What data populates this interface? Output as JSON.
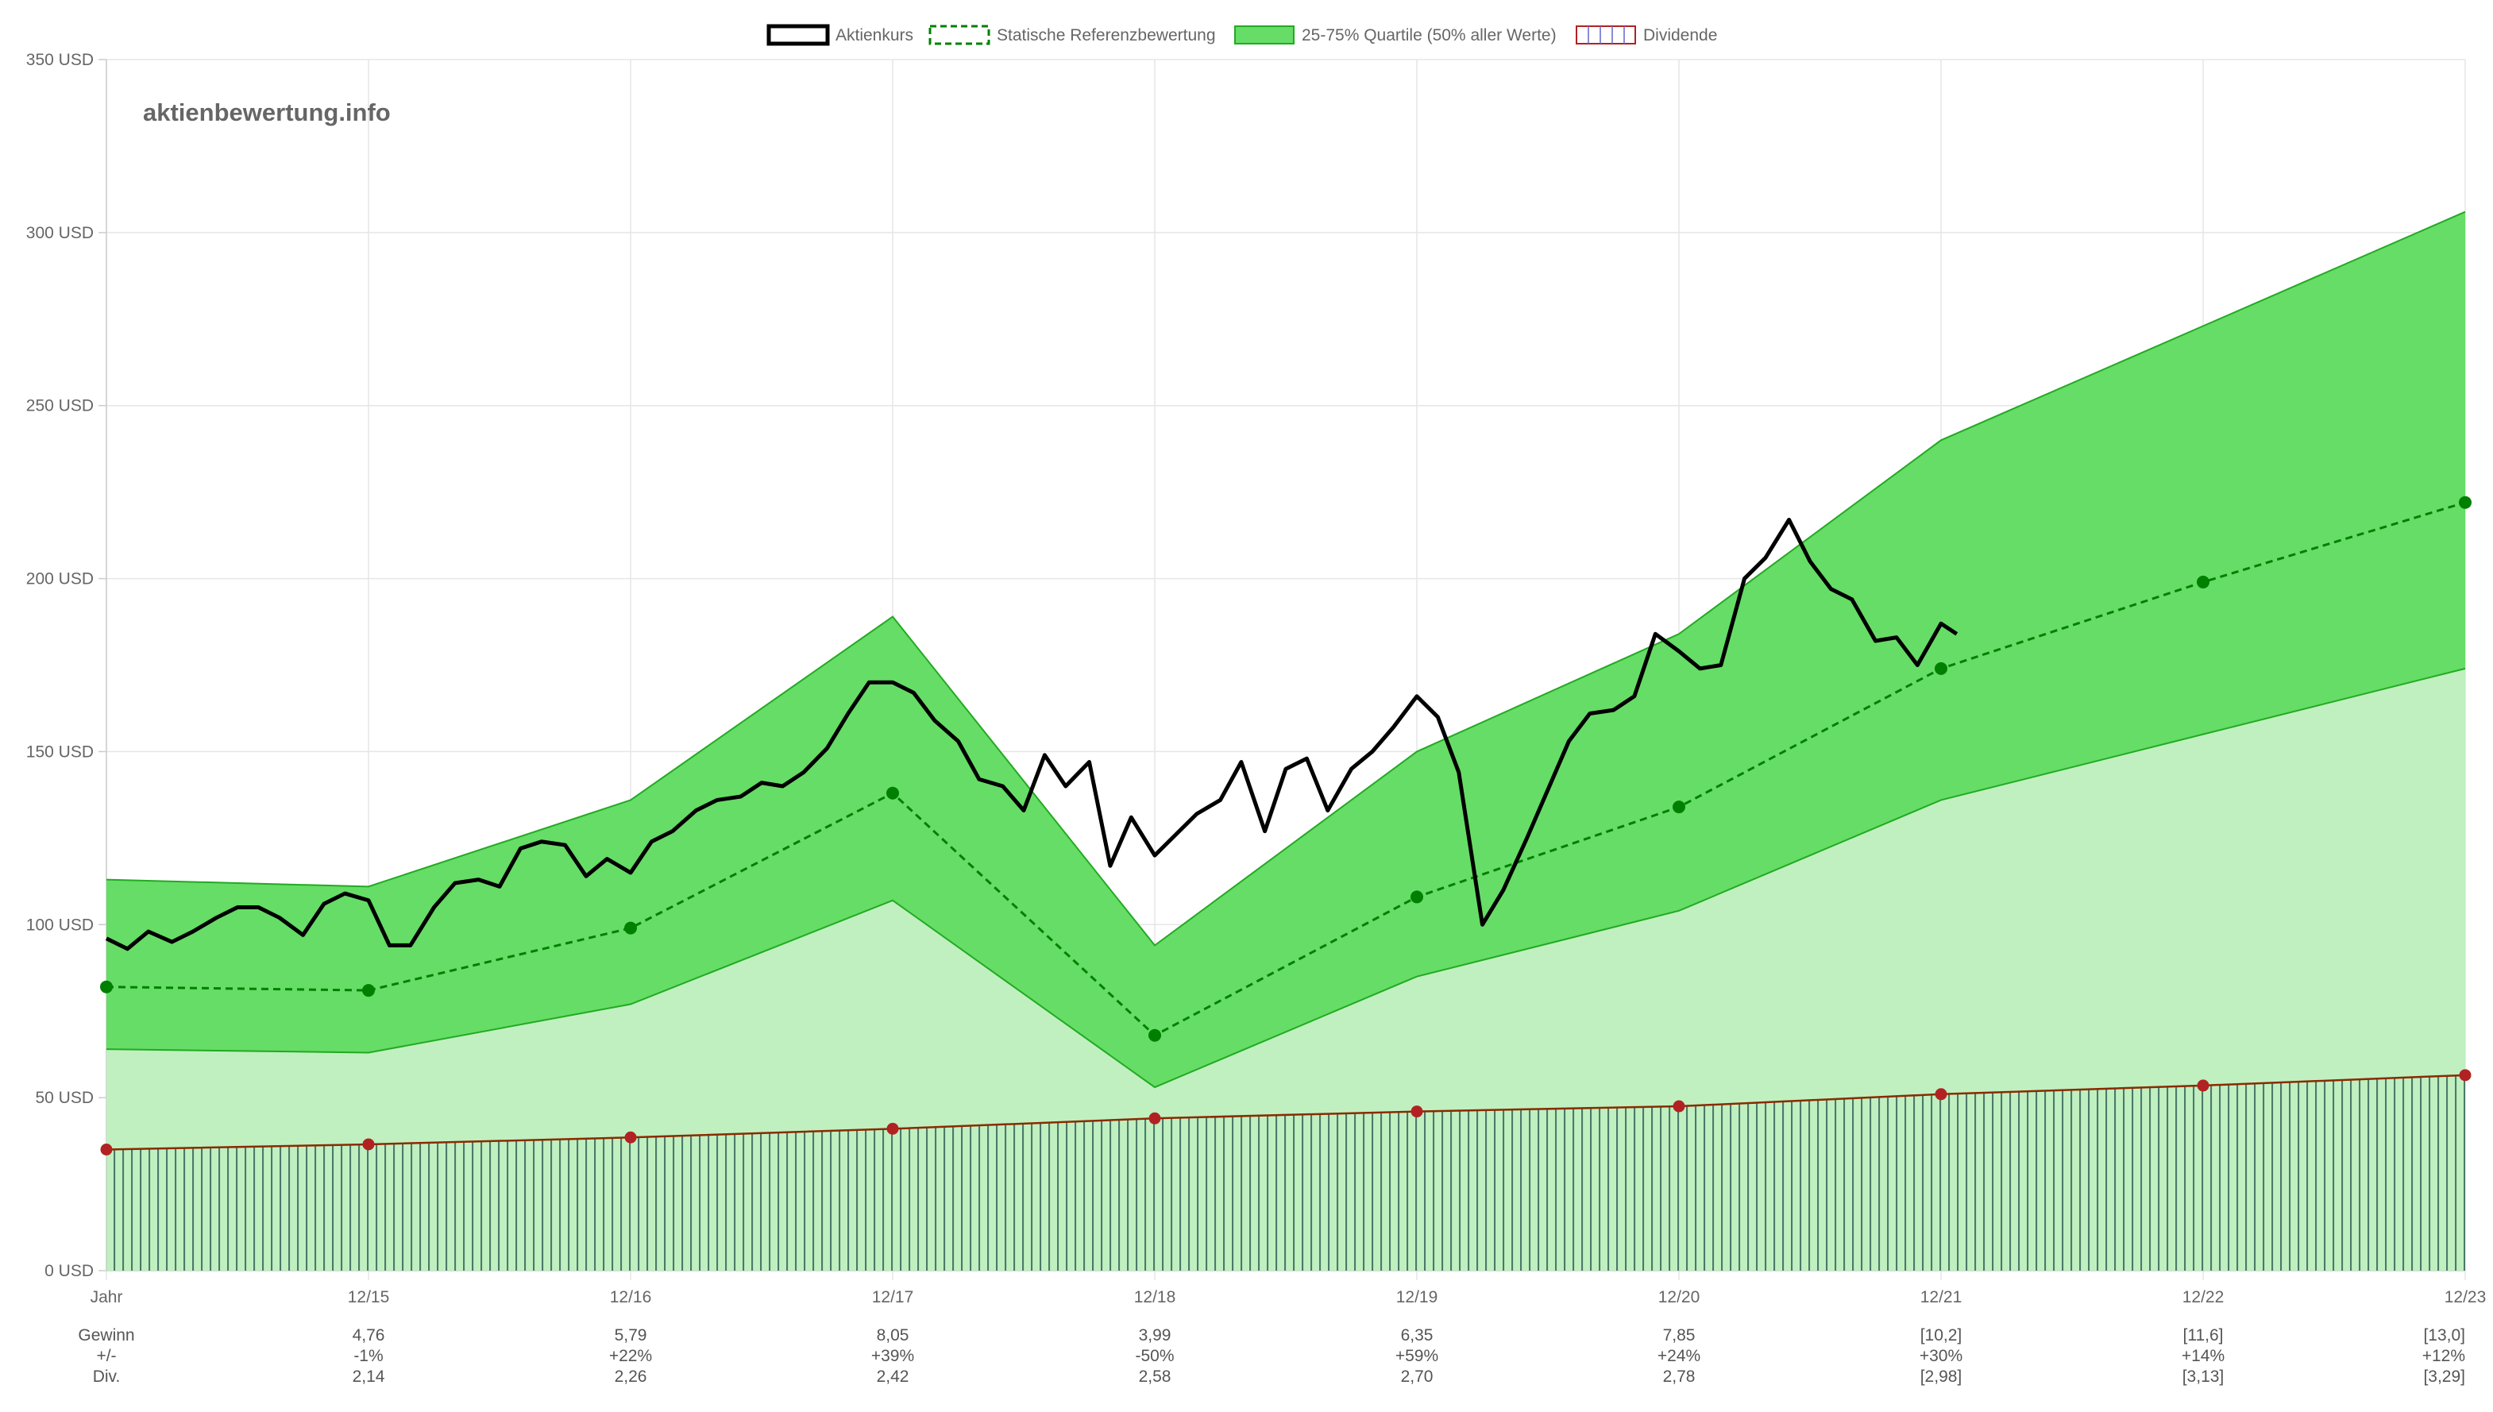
{
  "watermark": "aktienbewertung.info",
  "colors": {
    "price": "#000000",
    "reference": "#008000",
    "quartile_fill": "#66dd66",
    "quartile_stroke": "#22aa22",
    "lower_fill": "#c0f0c0",
    "dividend_stroke": "#8b2a00",
    "dividend_point": "#b22222",
    "dividend_bars": "#4a7a6a",
    "grid": "#e6e6e6"
  },
  "legend": [
    {
      "label": "Aktienkurs",
      "style": "price"
    },
    {
      "label": "Statische Referenzbewertung",
      "style": "reference"
    },
    {
      "label": "25-75% Quartile (50% aller Werte)",
      "style": "quartile"
    },
    {
      "label": "Dividende",
      "style": "dividend"
    }
  ],
  "chart_data": {
    "type": "line",
    "y_unit": "USD",
    "ylim": [
      0,
      350
    ],
    "y_ticks": [
      0,
      50,
      100,
      150,
      200,
      250,
      300,
      350
    ],
    "y_tick_labels": [
      "0 USD",
      "50 USD",
      "100 USD",
      "150 USD",
      "200 USD",
      "250 USD",
      "300 USD",
      "350 USD"
    ],
    "x_labels": [
      "Jahr",
      "12/15",
      "12/16",
      "12/17",
      "12/18",
      "12/19",
      "12/20",
      "12/21",
      "12/22",
      "12/23"
    ],
    "xlim": [
      0,
      9
    ],
    "grid": true,
    "legend_position": "top",
    "series": [
      {
        "name": "Statische Referenzbewertung",
        "type": "line-dashed",
        "x": [
          0,
          1,
          2,
          3,
          4,
          5,
          6,
          7,
          8,
          9
        ],
        "values": [
          82,
          81,
          99,
          138,
          68,
          108,
          134,
          174,
          199,
          222
        ]
      },
      {
        "name": "25-75% Quartile (50% aller Werte)",
        "type": "band",
        "x": [
          0,
          1,
          2,
          3,
          4,
          5,
          6,
          7,
          8,
          9
        ],
        "upper": [
          113,
          111,
          136,
          189,
          94,
          150,
          184,
          240,
          273,
          306
        ],
        "lower": [
          64,
          63,
          77,
          107,
          53,
          85,
          104,
          136,
          155,
          174
        ]
      },
      {
        "name": "Dividende",
        "type": "area-hatched",
        "x": [
          0,
          1,
          2,
          3,
          4,
          5,
          6,
          7,
          8,
          9
        ],
        "values": [
          35,
          36.5,
          38.5,
          41,
          44,
          46,
          47.5,
          51,
          53.5,
          56.5
        ]
      },
      {
        "name": "Aktienkurs",
        "type": "line",
        "points": [
          [
            0.0,
            96
          ],
          [
            0.08,
            93
          ],
          [
            0.16,
            98
          ],
          [
            0.25,
            95
          ],
          [
            0.33,
            98
          ],
          [
            0.42,
            102
          ],
          [
            0.5,
            105
          ],
          [
            0.58,
            105
          ],
          [
            0.66,
            102
          ],
          [
            0.75,
            97
          ],
          [
            0.83,
            106
          ],
          [
            0.91,
            109
          ],
          [
            1.0,
            107
          ],
          [
            1.08,
            94
          ],
          [
            1.16,
            94
          ],
          [
            1.25,
            105
          ],
          [
            1.33,
            112
          ],
          [
            1.42,
            113
          ],
          [
            1.5,
            111
          ],
          [
            1.58,
            122
          ],
          [
            1.66,
            124
          ],
          [
            1.75,
            123
          ],
          [
            1.83,
            114
          ],
          [
            1.91,
            119
          ],
          [
            2.0,
            115
          ],
          [
            2.08,
            124
          ],
          [
            2.16,
            127
          ],
          [
            2.25,
            133
          ],
          [
            2.33,
            136
          ],
          [
            2.42,
            137
          ],
          [
            2.5,
            141
          ],
          [
            2.58,
            140
          ],
          [
            2.66,
            144
          ],
          [
            2.75,
            151
          ],
          [
            2.83,
            161
          ],
          [
            2.91,
            170
          ],
          [
            3.0,
            170
          ],
          [
            3.08,
            167
          ],
          [
            3.16,
            159
          ],
          [
            3.25,
            153
          ],
          [
            3.33,
            142
          ],
          [
            3.42,
            140
          ],
          [
            3.5,
            133
          ],
          [
            3.58,
            149
          ],
          [
            3.66,
            140
          ],
          [
            3.75,
            147
          ],
          [
            3.83,
            117
          ],
          [
            3.91,
            131
          ],
          [
            4.0,
            120
          ],
          [
            4.08,
            126
          ],
          [
            4.16,
            132
          ],
          [
            4.25,
            136
          ],
          [
            4.33,
            147
          ],
          [
            4.42,
            127
          ],
          [
            4.5,
            145
          ],
          [
            4.58,
            148
          ],
          [
            4.66,
            133
          ],
          [
            4.75,
            145
          ],
          [
            4.83,
            150
          ],
          [
            4.91,
            157
          ],
          [
            5.0,
            166
          ],
          [
            5.08,
            160
          ],
          [
            5.16,
            144
          ],
          [
            5.25,
            100
          ],
          [
            5.33,
            110
          ],
          [
            5.42,
            125
          ],
          [
            5.5,
            139
          ],
          [
            5.58,
            153
          ],
          [
            5.66,
            161
          ],
          [
            5.75,
            162
          ],
          [
            5.83,
            166
          ],
          [
            5.91,
            184
          ],
          [
            6.0,
            179
          ],
          [
            6.08,
            174
          ],
          [
            6.16,
            175
          ],
          [
            6.25,
            200
          ],
          [
            6.33,
            206
          ],
          [
            6.42,
            217
          ],
          [
            6.5,
            205
          ],
          [
            6.58,
            197
          ],
          [
            6.66,
            194
          ],
          [
            6.75,
            182
          ],
          [
            6.83,
            183
          ],
          [
            6.91,
            175
          ],
          [
            7.0,
            187
          ],
          [
            7.06,
            184
          ]
        ]
      }
    ],
    "footer": {
      "rows": [
        {
          "label": "Gewinn",
          "values": [
            "4,76",
            "5,79",
            "8,05",
            "3,99",
            "6,35",
            "7,85",
            "[10,2]",
            "[11,6]",
            "[13,0]"
          ]
        },
        {
          "label": "+/-",
          "values": [
            "-1%",
            "+22%",
            "+39%",
            "-50%",
            "+59%",
            "+24%",
            "+30%",
            "+14%",
            "+12%"
          ]
        },
        {
          "label": "Div.",
          "values": [
            "2,14",
            "2,26",
            "2,42",
            "2,58",
            "2,70",
            "2,78",
            "[2,98]",
            "[3,13]",
            "[3,29]"
          ]
        }
      ]
    }
  }
}
